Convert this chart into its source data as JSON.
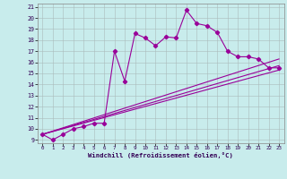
{
  "xlabel": "Windchill (Refroidissement éolien,°C)",
  "bg_color": "#c8ecec",
  "line_color": "#990099",
  "grid_color": "#aabbbb",
  "xlim": [
    -0.5,
    23.5
  ],
  "ylim": [
    8.7,
    21.3
  ],
  "xticks": [
    0,
    1,
    2,
    3,
    4,
    5,
    6,
    7,
    8,
    9,
    10,
    11,
    12,
    13,
    14,
    15,
    16,
    17,
    18,
    19,
    20,
    21,
    22,
    23
  ],
  "yticks": [
    9,
    10,
    11,
    12,
    13,
    14,
    15,
    16,
    17,
    18,
    19,
    20,
    21
  ],
  "line1_x": [
    0,
    1,
    2,
    3,
    4,
    5,
    6,
    7,
    8,
    9,
    10,
    11,
    12,
    13,
    14,
    15,
    16,
    17,
    18,
    19,
    20,
    21,
    22,
    23
  ],
  "line1_y": [
    9.5,
    9.0,
    9.5,
    10.0,
    10.2,
    10.5,
    10.5,
    17.0,
    14.3,
    18.6,
    18.2,
    17.5,
    18.3,
    18.2,
    20.7,
    19.5,
    19.3,
    18.7,
    17.0,
    16.5,
    16.5,
    16.3,
    15.5,
    15.5
  ],
  "line2_x": [
    0,
    23
  ],
  "line2_y": [
    9.5,
    16.3
  ],
  "line3_x": [
    0,
    23
  ],
  "line3_y": [
    9.5,
    15.7
  ],
  "line4_x": [
    0,
    23
  ],
  "line4_y": [
    9.5,
    15.3
  ]
}
